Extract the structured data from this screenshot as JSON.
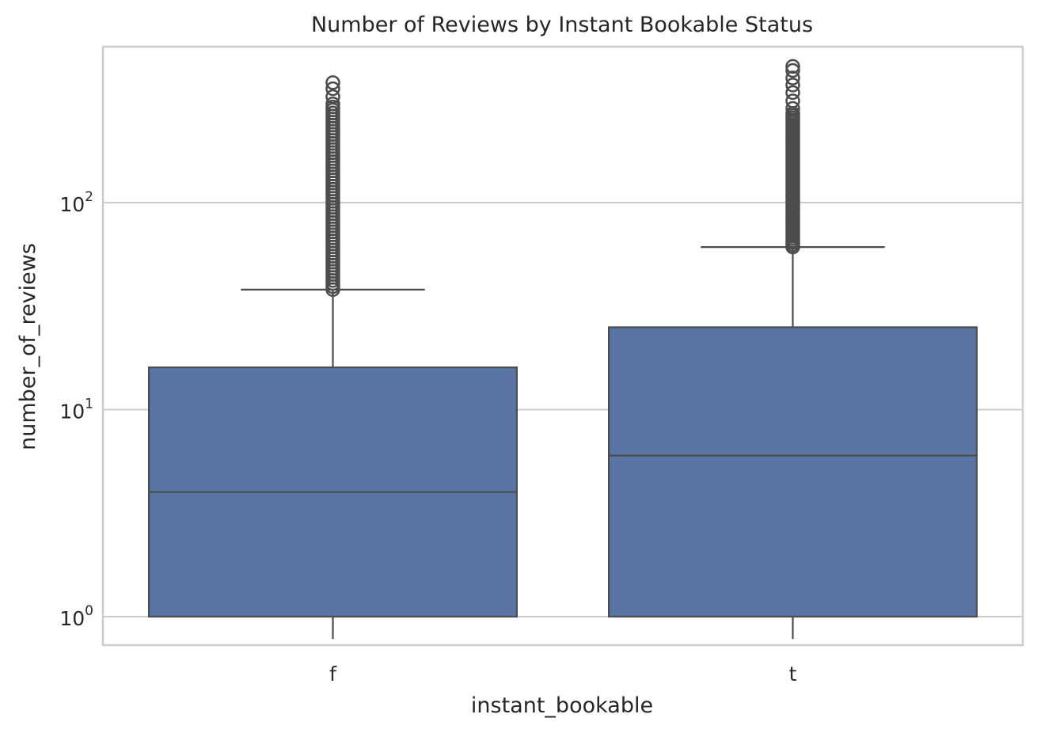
{
  "chart_data": {
    "type": "box",
    "title": "Number of Reviews by Instant Bookable Status",
    "xlabel": "instant_bookable",
    "ylabel": "number_of_reviews",
    "y_scale": "log",
    "ylim": [
      0.78,
      560
    ],
    "y_ticks": [
      {
        "value": 1,
        "base": "10",
        "exp": "0"
      },
      {
        "value": 10,
        "base": "10",
        "exp": "1"
      },
      {
        "value": 100,
        "base": "10",
        "exp": "2"
      }
    ],
    "grid": true,
    "box_color": "#5975a4",
    "line_color": "#4c4c4c",
    "categories": [
      "f",
      "t"
    ],
    "boxes": [
      {
        "category": "f",
        "whisker_low": 0.78,
        "q1": 1,
        "median": 4,
        "q3": 16,
        "whisker_high": 38,
        "outlier_range": [
          38,
          290
        ],
        "outliers": [
          300,
          325,
          355,
          380
        ]
      },
      {
        "category": "t",
        "whisker_low": 0.78,
        "q1": 1,
        "median": 6,
        "q3": 25,
        "whisker_high": 61,
        "outlier_range": [
          61,
          270
        ],
        "outliers": [
          285,
          310,
          340,
          370,
          400,
          435,
          455
        ]
      }
    ]
  }
}
